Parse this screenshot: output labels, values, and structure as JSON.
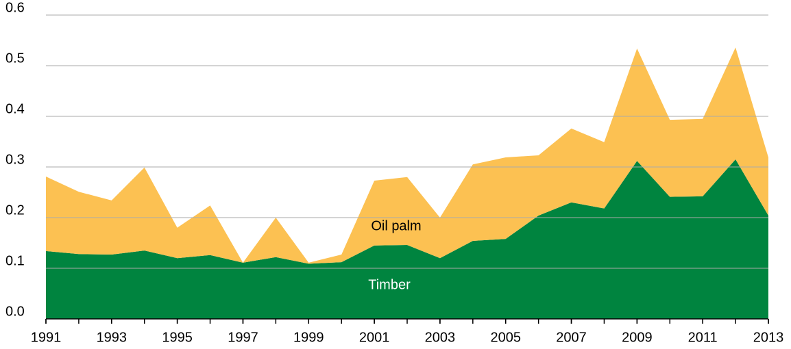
{
  "chart_data": {
    "type": "stacked-area",
    "x": [
      1991,
      1992,
      1993,
      1994,
      1995,
      1996,
      1997,
      1998,
      1999,
      2000,
      2001,
      2002,
      2003,
      2004,
      2005,
      2006,
      2007,
      2008,
      2009,
      2010,
      2011,
      2012,
      2013
    ],
    "series": [
      {
        "name": "Timber",
        "color": "#00843f",
        "values": [
          0.134,
          0.128,
          0.127,
          0.135,
          0.12,
          0.126,
          0.111,
          0.122,
          0.109,
          0.112,
          0.145,
          0.146,
          0.12,
          0.154,
          0.158,
          0.204,
          0.23,
          0.218,
          0.312,
          0.241,
          0.242,
          0.315,
          0.204
        ]
      },
      {
        "name": "Oil palm",
        "color": "#fcc152",
        "values": [
          0.147,
          0.123,
          0.107,
          0.164,
          0.06,
          0.098,
          0.0,
          0.078,
          0.002,
          0.015,
          0.128,
          0.134,
          0.08,
          0.151,
          0.161,
          0.119,
          0.146,
          0.131,
          0.222,
          0.152,
          0.153,
          0.221,
          0.115
        ]
      }
    ],
    "xlim": [
      1991,
      2013
    ],
    "xticks": [
      1991,
      1993,
      1995,
      1997,
      1999,
      2001,
      2003,
      2005,
      2007,
      2009,
      2011,
      2013
    ],
    "ylim": [
      0,
      0.6
    ],
    "yticks": [
      {
        "value": 0,
        "label": "0.0"
      },
      0.1,
      0.2,
      0.3,
      0.4,
      0.5,
      0.6
    ],
    "grid": true
  }
}
